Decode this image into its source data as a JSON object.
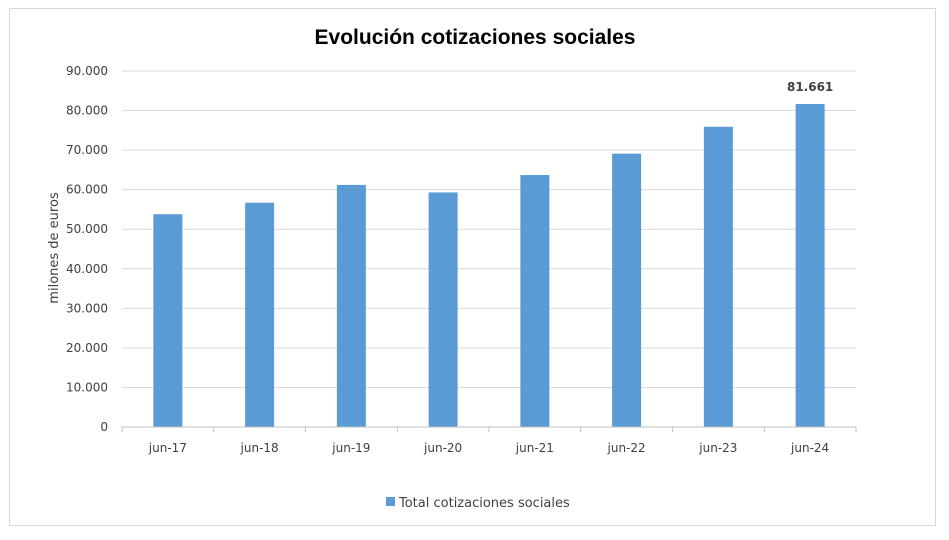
{
  "chart_data": {
    "type": "bar",
    "title": "Evolución cotizaciones sociales",
    "xlabel": "",
    "ylabel": "milones de euros",
    "categories": [
      "jun-17",
      "jun-18",
      "jun-19",
      "jun-20",
      "jun-21",
      "jun-22",
      "jun-23",
      "jun-24"
    ],
    "series": [
      {
        "name": "Total cotizaciones sociales",
        "values": [
          53800,
          56700,
          61200,
          59300,
          63700,
          69100,
          75900,
          81661
        ],
        "color": "#5b9bd5"
      }
    ],
    "data_labels": [
      {
        "category": "jun-24",
        "text": "81.661"
      }
    ],
    "ylim": [
      0,
      90000
    ],
    "yticks": [
      0,
      10000,
      20000,
      30000,
      40000,
      50000,
      60000,
      70000,
      80000,
      90000
    ],
    "ytick_labels": [
      "0",
      "10.000",
      "20.000",
      "30.000",
      "40.000",
      "50.000",
      "60.000",
      "70.000",
      "80.000",
      "90.000"
    ],
    "grid": true,
    "legend_position": "bottom",
    "colors": {
      "bar": "#5b9bd5",
      "grid": "#d9d9d9",
      "axis": "#bfbfbf",
      "text": "#404040"
    }
  }
}
